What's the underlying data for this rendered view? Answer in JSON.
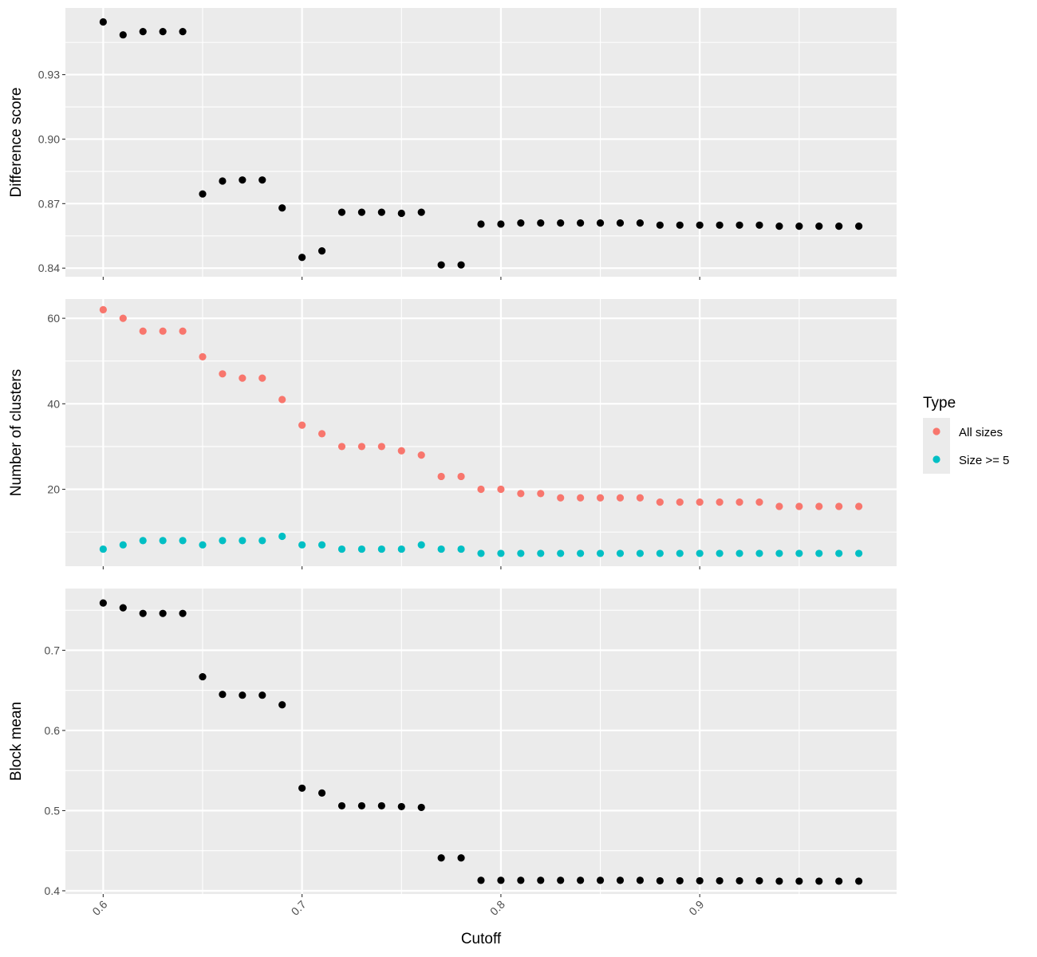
{
  "chart_data": {
    "type": "scatter",
    "x": [
      0.6,
      0.61,
      0.62,
      0.63,
      0.64,
      0.65,
      0.66,
      0.67,
      0.68,
      0.69,
      0.7,
      0.71,
      0.72,
      0.73,
      0.74,
      0.75,
      0.76,
      0.77,
      0.78,
      0.79,
      0.8,
      0.81,
      0.82,
      0.83,
      0.84,
      0.85,
      0.86,
      0.87,
      0.88,
      0.89,
      0.9,
      0.91,
      0.92,
      0.93,
      0.94,
      0.95,
      0.96,
      0.97,
      0.98
    ],
    "xlabel": "Cutoff",
    "xticks": [
      {
        "value": 0.6,
        "label": "0.6"
      },
      {
        "value": 0.7,
        "label": "0.7"
      },
      {
        "value": 0.8,
        "label": "0.8"
      },
      {
        "value": 0.9,
        "label": "0.9"
      }
    ],
    "xlim": [
      0.581,
      0.999
    ],
    "grid": true,
    "panels": [
      {
        "ylabel": "Difference score",
        "ylim": [
          0.836,
          0.961
        ],
        "yticks": [
          {
            "value": 0.84,
            "label": "0.84"
          },
          {
            "value": 0.87,
            "label": "0.87"
          },
          {
            "value": 0.9,
            "label": "0.90"
          },
          {
            "value": 0.93,
            "label": "0.93"
          }
        ],
        "series": [
          {
            "color": "#000000",
            "values": [
              0.9545,
              0.9485,
              0.95,
              0.95,
              0.95,
              0.8745,
              0.8805,
              0.881,
              0.881,
              0.868,
              0.845,
              0.848,
              0.866,
              0.866,
              0.866,
              0.8655,
              0.866,
              0.8415,
              0.8415,
              0.8605,
              0.8605,
              0.861,
              0.861,
              0.861,
              0.861,
              0.861,
              0.861,
              0.861,
              0.86,
              0.86,
              0.86,
              0.86,
              0.86,
              0.86,
              0.8595,
              0.8595,
              0.8595,
              0.8595,
              0.8595
            ]
          }
        ]
      },
      {
        "ylabel": "Number of clusters",
        "ylim": [
          2,
          64.5
        ],
        "yticks": [
          {
            "value": 20,
            "label": "20"
          },
          {
            "value": 40,
            "label": "40"
          },
          {
            "value": 60,
            "label": "60"
          }
        ],
        "series": [
          {
            "name": "All sizes",
            "color": "#F8766D",
            "values": [
              62,
              60,
              57,
              57,
              57,
              51,
              47,
              46,
              46,
              41,
              35,
              33,
              30,
              30,
              30,
              29,
              28,
              23,
              23,
              20,
              20,
              19,
              19,
              18,
              18,
              18,
              18,
              18,
              17,
              17,
              17,
              17,
              17,
              17,
              16,
              16,
              16,
              16,
              16
            ]
          },
          {
            "name": "Size >= 5",
            "color": "#00BFC4",
            "values": [
              6,
              7,
              8,
              8,
              8,
              7,
              8,
              8,
              8,
              9,
              7,
              7,
              6,
              6,
              6,
              6,
              7,
              6,
              6,
              5,
              5,
              5,
              5,
              5,
              5,
              5,
              5,
              5,
              5,
              5,
              5,
              5,
              5,
              5,
              5,
              5,
              5,
              5,
              5
            ]
          }
        ]
      },
      {
        "ylabel": "Block mean",
        "ylim": [
          0.396,
          0.777
        ],
        "yticks": [
          {
            "value": 0.4,
            "label": "0.4"
          },
          {
            "value": 0.5,
            "label": "0.5"
          },
          {
            "value": 0.6,
            "label": "0.6"
          },
          {
            "value": 0.7,
            "label": "0.7"
          }
        ],
        "series": [
          {
            "color": "#000000",
            "values": [
              0.759,
              0.753,
              0.746,
              0.746,
              0.746,
              0.667,
              0.645,
              0.644,
              0.644,
              0.632,
              0.528,
              0.522,
              0.506,
              0.506,
              0.506,
              0.505,
              0.504,
              0.441,
              0.441,
              0.413,
              0.413,
              0.413,
              0.413,
              0.413,
              0.413,
              0.413,
              0.413,
              0.413,
              0.4125,
              0.4125,
              0.4125,
              0.4125,
              0.4125,
              0.4125,
              0.412,
              0.412,
              0.412,
              0.412,
              0.412
            ]
          }
        ]
      }
    ],
    "legend": {
      "title": "Type",
      "position": "right",
      "items": [
        {
          "label": "All sizes",
          "color": "#F8766D"
        },
        {
          "label": "Size >= 5",
          "color": "#00BFC4"
        }
      ]
    }
  }
}
